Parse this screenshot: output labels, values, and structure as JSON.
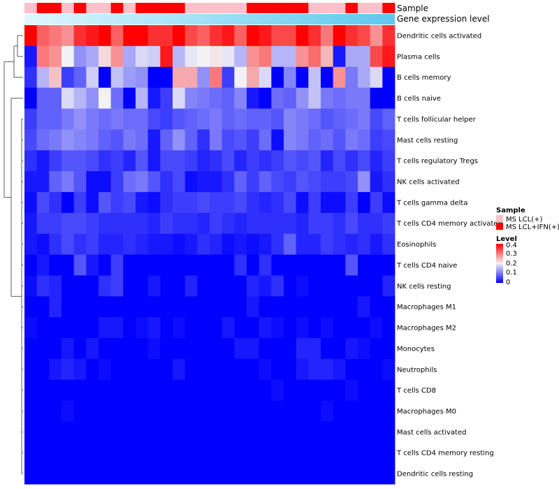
{
  "chart_data": {
    "type": "heatmap",
    "title": "",
    "annotation_labels": {
      "sample": "Sample",
      "level": "Gene expression level"
    },
    "sample_groups": [
      "MS LCL(+)",
      "MS LCL+IFN(+)"
    ],
    "sample_colors": {
      "MS LCL(+)": "#ffc0cb",
      "MS LCL+IFN(+)": "#ff0000"
    },
    "samples": [
      0,
      1,
      1,
      0,
      1,
      0,
      0,
      1,
      0,
      1,
      1,
      1,
      1,
      0,
      0,
      0,
      0,
      0,
      1,
      1,
      1,
      1,
      1,
      0,
      0,
      0,
      1,
      0,
      0,
      1
    ],
    "gene_level_gradient": [
      "#e0f7ff",
      "#5fc8ee"
    ],
    "rows": [
      "Dendritic cells activated",
      "Plasma cells",
      "B cells memory",
      "B cells naive",
      "T cells follicular helper",
      "Mast cells resting",
      "T cells regulatory  Tregs",
      "NK cells activated",
      "T cells gamma delta",
      "T cells CD4 memory activated",
      "Eosinophils",
      "T cells CD4 naive",
      "NK cells resting",
      "Macrophages M1",
      "Macrophages M2",
      "Monocytes",
      "Neutrophils",
      "T cells CD8",
      "Macrophages M0",
      "Mast cells activated",
      "T cells CD4 memory resting",
      "Dendritic cells resting"
    ],
    "values": [
      [
        0.4,
        0.32,
        0.3,
        0.28,
        0.36,
        0.38,
        0.4,
        0.32,
        0.4,
        0.4,
        0.36,
        0.36,
        0.4,
        0.34,
        0.32,
        0.36,
        0.38,
        0.32,
        0.4,
        0.38,
        0.34,
        0.34,
        0.4,
        0.36,
        0.3,
        0.4,
        0.36,
        0.34,
        0.28,
        0.36
      ],
      [
        0.02,
        0.3,
        0.28,
        0.2,
        0.12,
        0.14,
        0.22,
        0.28,
        0.14,
        0.18,
        0.17,
        0.38,
        0.15,
        0.19,
        0.2,
        0.21,
        0.19,
        0.15,
        0.28,
        0.3,
        0.15,
        0.15,
        0.28,
        0.31,
        0.25,
        0.02,
        0.14,
        0.14,
        0.34,
        0.38
      ],
      [
        0.04,
        0.15,
        0.24,
        0.05,
        0.08,
        0.17,
        0.0,
        0.16,
        0.13,
        0.12,
        0.0,
        0.0,
        0.26,
        0.26,
        0.12,
        0.3,
        0.05,
        0.2,
        0.26,
        0.18,
        0.0,
        0.11,
        0.0,
        0.16,
        0.0,
        0.28,
        0.1,
        0.14,
        0.18,
        0.0
      ],
      [
        0.0,
        0.08,
        0.08,
        0.18,
        0.15,
        0.12,
        0.2,
        0.09,
        0.0,
        0.15,
        0.02,
        0.05,
        0.18,
        0.11,
        0.1,
        0.09,
        0.08,
        0.11,
        0.02,
        0.0,
        0.09,
        0.08,
        0.12,
        0.16,
        0.1,
        0.09,
        0.1,
        0.1,
        0.0,
        0.0
      ],
      [
        0.05,
        0.08,
        0.08,
        0.1,
        0.12,
        0.1,
        0.09,
        0.1,
        0.09,
        0.09,
        0.06,
        0.05,
        0.07,
        0.08,
        0.09,
        0.1,
        0.08,
        0.09,
        0.08,
        0.08,
        0.07,
        0.11,
        0.1,
        0.09,
        0.07,
        0.08,
        0.09,
        0.1,
        0.06,
        0.08
      ],
      [
        0.06,
        0.09,
        0.1,
        0.12,
        0.11,
        0.1,
        0.08,
        0.07,
        0.1,
        0.09,
        0.02,
        0.08,
        0.12,
        0.08,
        0.04,
        0.1,
        0.06,
        0.07,
        0.05,
        0.09,
        0.01,
        0.11,
        0.1,
        0.08,
        0.09,
        0.07,
        0.1,
        0.09,
        0.05,
        0.06
      ],
      [
        0.04,
        0.02,
        0.05,
        0.07,
        0.07,
        0.06,
        0.04,
        0.05,
        0.03,
        0.07,
        0.02,
        0.06,
        0.06,
        0.05,
        0.03,
        0.04,
        0.06,
        0.03,
        0.05,
        0.04,
        0.05,
        0.07,
        0.06,
        0.07,
        0.03,
        0.06,
        0.04,
        0.06,
        0.03,
        0.05
      ],
      [
        0.02,
        0.02,
        0.08,
        0.1,
        0.07,
        0.01,
        0.01,
        0.05,
        0.09,
        0.1,
        0.07,
        0.04,
        0.06,
        0.01,
        0.02,
        0.02,
        0.04,
        0.08,
        0.05,
        0.08,
        0.06,
        0.05,
        0.07,
        0.06,
        0.05,
        0.05,
        0.06,
        0.12,
        0.02,
        0.04
      ],
      [
        0.01,
        0.06,
        0.04,
        0.0,
        0.05,
        0.01,
        0.07,
        0.05,
        0.06,
        0.02,
        0.01,
        0.04,
        0.05,
        0.05,
        0.06,
        0.05,
        0.05,
        0.06,
        0.04,
        0.03,
        0.04,
        0.06,
        0.01,
        0.05,
        0.01,
        0.01,
        0.05,
        0.0,
        0.05,
        0.01
      ],
      [
        0.02,
        0.05,
        0.05,
        0.06,
        0.06,
        0.05,
        0.04,
        0.04,
        0.04,
        0.04,
        0.03,
        0.05,
        0.04,
        0.04,
        0.03,
        0.05,
        0.04,
        0.03,
        0.04,
        0.04,
        0.04,
        0.04,
        0.03,
        0.05,
        0.05,
        0.04,
        0.06,
        0.04,
        0.04,
        0.05
      ],
      [
        0.02,
        0.01,
        0.04,
        0.06,
        0.04,
        0.05,
        0.03,
        0.03,
        0.04,
        0.03,
        0.02,
        0.02,
        0.01,
        0.02,
        0.04,
        0.03,
        0.01,
        0.02,
        0.01,
        0.02,
        0.04,
        0.08,
        0.03,
        0.03,
        0.05,
        0.04,
        0.03,
        0.04,
        0.02,
        0.04
      ],
      [
        0.0,
        0.02,
        0.0,
        0.0,
        0.07,
        0.02,
        0.0,
        0.05,
        0.0,
        0.0,
        0.0,
        0.0,
        0.0,
        0.0,
        0.0,
        0.0,
        0.0,
        0.04,
        0.0,
        0.04,
        0.0,
        0.0,
        0.0,
        0.0,
        0.0,
        0.0,
        0.07,
        0.0,
        0.0,
        0.0
      ],
      [
        0.01,
        0.04,
        0.03,
        0.0,
        0.0,
        0.0,
        0.04,
        0.05,
        0.0,
        0.0,
        0.02,
        0.0,
        0.0,
        0.03,
        0.0,
        0.0,
        0.0,
        0.0,
        0.03,
        0.02,
        0.04,
        0.0,
        0.01,
        0.0,
        0.0,
        0.0,
        0.0,
        0.0,
        0.0,
        0.03
      ],
      [
        0.0,
        0.0,
        0.03,
        0.0,
        0.0,
        0.0,
        0.0,
        0.0,
        0.0,
        0.0,
        0.0,
        0.0,
        0.0,
        0.0,
        0.0,
        0.0,
        0.0,
        0.0,
        0.02,
        0.0,
        0.0,
        0.0,
        0.0,
        0.0,
        0.0,
        0.0,
        0.0,
        0.02,
        0.0,
        0.0
      ],
      [
        0.01,
        0.0,
        0.0,
        0.0,
        0.0,
        0.0,
        0.02,
        0.02,
        0.0,
        0.01,
        0.02,
        0.0,
        0.01,
        0.0,
        0.0,
        0.0,
        0.02,
        0.0,
        0.0,
        0.02,
        0.01,
        0.0,
        0.01,
        0.0,
        0.01,
        0.0,
        0.0,
        0.0,
        0.01,
        0.0
      ],
      [
        0.0,
        0.0,
        0.0,
        0.02,
        0.0,
        0.02,
        0.0,
        0.0,
        0.0,
        0.0,
        0.01,
        0.0,
        0.0,
        0.0,
        0.0,
        0.0,
        0.0,
        0.02,
        0.02,
        0.0,
        0.0,
        0.0,
        0.03,
        0.03,
        0.0,
        0.0,
        0.02,
        0.01,
        0.0,
        0.0
      ],
      [
        0.0,
        0.0,
        0.02,
        0.03,
        0.02,
        0.0,
        0.01,
        0.0,
        0.0,
        0.0,
        0.0,
        0.0,
        0.02,
        0.0,
        0.0,
        0.0,
        0.0,
        0.0,
        0.0,
        0.01,
        0.0,
        0.0,
        0.02,
        0.03,
        0.03,
        0.02,
        0.0,
        0.0,
        0.0,
        0.01
      ],
      [
        0.0,
        0.0,
        0.0,
        0.0,
        0.0,
        0.0,
        0.0,
        0.0,
        0.0,
        0.0,
        0.0,
        0.0,
        0.0,
        0.0,
        0.0,
        0.0,
        0.0,
        0.0,
        0.0,
        0.0,
        0.01,
        0.0,
        0.0,
        0.0,
        0.0,
        0.0,
        0.01,
        0.0,
        0.0,
        0.0
      ],
      [
        0.0,
        0.0,
        0.0,
        0.01,
        0.0,
        0.0,
        0.0,
        0.0,
        0.0,
        0.0,
        0.0,
        0.0,
        0.0,
        0.0,
        0.0,
        0.0,
        0.0,
        0.0,
        0.0,
        0.0,
        0.0,
        0.0,
        0.0,
        0.0,
        0.01,
        0.0,
        0.0,
        0.0,
        0.0,
        0.0
      ],
      [
        0.0,
        0.0,
        0.0,
        0.0,
        0.0,
        0.0,
        0.0,
        0.0,
        0.0,
        0.0,
        0.0,
        0.0,
        0.0,
        0.0,
        0.0,
        0.0,
        0.0,
        0.0,
        0.0,
        0.0,
        0.0,
        0.0,
        0.0,
        0.0,
        0.0,
        0.0,
        0.0,
        0.0,
        0.0,
        0.0
      ],
      [
        0.0,
        0.0,
        0.0,
        0.0,
        0.0,
        0.0,
        0.0,
        0.0,
        0.0,
        0.0,
        0.0,
        0.0,
        0.0,
        0.0,
        0.0,
        0.0,
        0.0,
        0.0,
        0.0,
        0.0,
        0.0,
        0.0,
        0.0,
        0.0,
        0.0,
        0.0,
        0.0,
        0.0,
        0.0,
        0.0
      ],
      [
        0.0,
        0.0,
        0.0,
        0.0,
        0.0,
        0.0,
        0.0,
        0.0,
        0.0,
        0.0,
        0.0,
        0.0,
        0.0,
        0.0,
        0.0,
        0.0,
        0.0,
        0.0,
        0.0,
        0.0,
        0.0,
        0.0,
        0.0,
        0.0,
        0.0,
        0.0,
        0.0,
        0.0,
        0.0,
        0.0
      ]
    ],
    "color_scale": {
      "range": [
        0,
        0.4
      ],
      "stops": [
        {
          "value": 0.0,
          "color": "#0000ff"
        },
        {
          "value": 0.2,
          "color": "#f2f2f5"
        },
        {
          "value": 0.4,
          "color": "#ff0000"
        }
      ]
    },
    "legend": {
      "sample_title": "Sample",
      "level_title": "Level",
      "ticks": [
        "0.4",
        "0.3",
        "0.2",
        "0.1",
        "0"
      ],
      "placement": "right"
    },
    "row_dendrogram": true
  }
}
